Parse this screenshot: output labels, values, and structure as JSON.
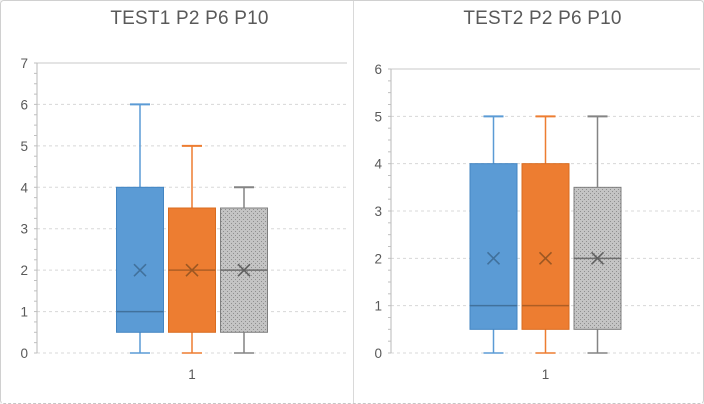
{
  "window": {
    "background": "#ffffff",
    "frame_border_color": "#d0d0d0",
    "panel_divider_color": "#d9d9d9"
  },
  "styles": {
    "title_color": "#595959",
    "axis_label_color": "#595959",
    "gridline_color": "#d8d8d8",
    "plot_border_color": "#c9c9c9",
    "axis_line_color": "#b9b9b9",
    "minor_tick_color": "#bfbfbf"
  },
  "chart_data": [
    {
      "type": "box",
      "title": "TEST1 P2 P6 P10",
      "x_categories": [
        "1"
      ],
      "y_axis": {
        "min": 0,
        "max": 7,
        "step": 1,
        "tick_labels": [
          "0",
          "1",
          "2",
          "3",
          "4",
          "5",
          "6",
          "7"
        ]
      },
      "grid": "on",
      "legend": "none",
      "series": [
        {
          "name": "P2",
          "fill": "#5B9BD5",
          "stroke": "#4385C2",
          "whisker_color": "#5B9BD5",
          "median_color": "#41719C",
          "mean_color": "#41719C",
          "pattern": false,
          "whisker_low": 0,
          "q1": 0.5,
          "median": 1,
          "q3": 4,
          "whisker_high": 6,
          "mean": 2
        },
        {
          "name": "P6",
          "fill": "#ED7D31",
          "stroke": "#D96C20",
          "whisker_color": "#ED7D31",
          "median_color": "#AE5E24",
          "mean_color": "#9C5722",
          "pattern": false,
          "whisker_low": 0,
          "q1": 0.5,
          "median": 2,
          "q3": 3.5,
          "whisker_high": 5,
          "mean": 2
        },
        {
          "name": "P10",
          "fill": "#BDBDBD",
          "stroke": "#7F7F7F",
          "whisker_color": "#848484",
          "median_color": "#6E6E6E",
          "mean_color": "#606060",
          "pattern": true,
          "pattern_base": "#C4C4C4",
          "pattern_dot": "#8F8F8F",
          "whisker_low": 0,
          "q1": 0.5,
          "median": 2,
          "q3": 3.5,
          "whisker_high": 4,
          "mean": 2
        }
      ]
    },
    {
      "type": "box",
      "title": "TEST2 P2 P6 P10",
      "x_categories": [
        "1"
      ],
      "y_axis": {
        "min": 0,
        "max": 6,
        "step": 1,
        "tick_labels": [
          "0",
          "1",
          "2",
          "3",
          "4",
          "5",
          "6"
        ]
      },
      "grid": "on",
      "legend": "none",
      "series": [
        {
          "name": "P2",
          "fill": "#5B9BD5",
          "stroke": "#4385C2",
          "whisker_color": "#5B9BD5",
          "median_color": "#41719C",
          "mean_color": "#41719C",
          "pattern": false,
          "whisker_low": 0,
          "q1": 0.5,
          "median": 1,
          "q3": 4,
          "whisker_high": 5,
          "mean": 2
        },
        {
          "name": "P6",
          "fill": "#ED7D31",
          "stroke": "#D96C20",
          "whisker_color": "#ED7D31",
          "median_color": "#AE5E24",
          "mean_color": "#9C5722",
          "pattern": false,
          "whisker_low": 0,
          "q1": 0.5,
          "median": 1,
          "q3": 4,
          "whisker_high": 5,
          "mean": 2
        },
        {
          "name": "P10",
          "fill": "#BDBDBD",
          "stroke": "#7F7F7F",
          "whisker_color": "#848484",
          "median_color": "#6E6E6E",
          "mean_color": "#606060",
          "pattern": true,
          "pattern_base": "#C4C4C4",
          "pattern_dot": "#8F8F8F",
          "whisker_low": 0,
          "q1": 0.5,
          "median": 2,
          "q3": 3.5,
          "whisker_high": 5,
          "mean": 2
        }
      ]
    }
  ]
}
